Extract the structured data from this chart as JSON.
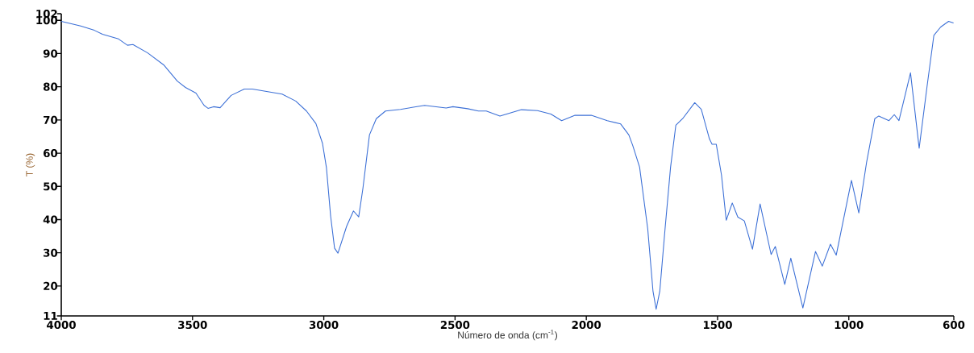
{
  "chart_data": {
    "type": "line",
    "xlabel": "Número de onda (cm$^{-1}$)",
    "ylabel": "T (%)",
    "x": [
      4000,
      3926,
      3874,
      3843,
      3782,
      3748,
      3727,
      3671,
      3610,
      3558,
      3527,
      3487,
      3456,
      3441,
      3420,
      3395,
      3353,
      3303,
      3272,
      3159,
      3107,
      3066,
      3030,
      3005,
      2990,
      2974,
      2959,
      2946,
      2913,
      2887,
      2867,
      2851,
      2826,
      2800,
      2765,
      2708,
      2616,
      2534,
      2508,
      2452,
      2411,
      2381,
      2329,
      2247,
      2186,
      2135,
      2094,
      2043,
      1981,
      1920,
      1869,
      1838,
      1823,
      1797,
      1766,
      1746,
      1734,
      1720,
      1700,
      1679,
      1659,
      1633,
      1587,
      1562,
      1531,
      1521,
      1505,
      1485,
      1467,
      1444,
      1423,
      1398,
      1367,
      1338,
      1296,
      1280,
      1244,
      1221,
      1175,
      1127,
      1101,
      1070,
      1048,
      990,
      962,
      932,
      901,
      886,
      847,
      827,
      809,
      765,
      732,
      702,
      676,
      650,
      620,
      601
    ],
    "series": [
      {
        "color": "#3b6fd6",
        "values": [
          99.7,
          98.3,
          97.0,
          95.8,
          94.4,
          92.5,
          92.7,
          90.2,
          86.6,
          81.7,
          79.8,
          78.1,
          74.4,
          73.5,
          74.0,
          73.7,
          77.4,
          79.3,
          79.3,
          77.8,
          75.7,
          72.7,
          68.9,
          63.0,
          55.7,
          41.1,
          31.4,
          29.9,
          38.0,
          42.6,
          40.8,
          49.4,
          65.5,
          70.4,
          72.7,
          73.2,
          74.4,
          73.6,
          74.0,
          73.4,
          72.7,
          72.7,
          71.2,
          73.1,
          72.8,
          71.8,
          69.8,
          71.4,
          71.4,
          69.8,
          68.8,
          65.5,
          62.3,
          55.8,
          37.2,
          18.5,
          13.0,
          18.5,
          37.2,
          55.8,
          68.4,
          70.4,
          75.2,
          73.2,
          64.3,
          62.7,
          62.7,
          53.4,
          39.8,
          45.0,
          40.8,
          39.6,
          31.1,
          44.7,
          29.5,
          31.9,
          20.5,
          28.4,
          13.4,
          30.4,
          26.0,
          32.6,
          29.3,
          51.8,
          42.0,
          57.4,
          70.4,
          71.2,
          69.8,
          71.6,
          69.8,
          84.2,
          61.5,
          80.1,
          95.5,
          98.0,
          99.7,
          99.2
        ]
      }
    ],
    "xlim": [
      4000,
      600
    ],
    "xticks": [
      4000,
      3500,
      3000,
      2500,
      2000,
      1500,
      1000,
      600
    ],
    "ylim": [
      11,
      102
    ],
    "yticks": [
      11,
      20,
      30,
      40,
      50,
      60,
      70,
      80,
      90,
      100,
      102
    ],
    "grid": false,
    "line_style": "solid",
    "marker": "none"
  }
}
